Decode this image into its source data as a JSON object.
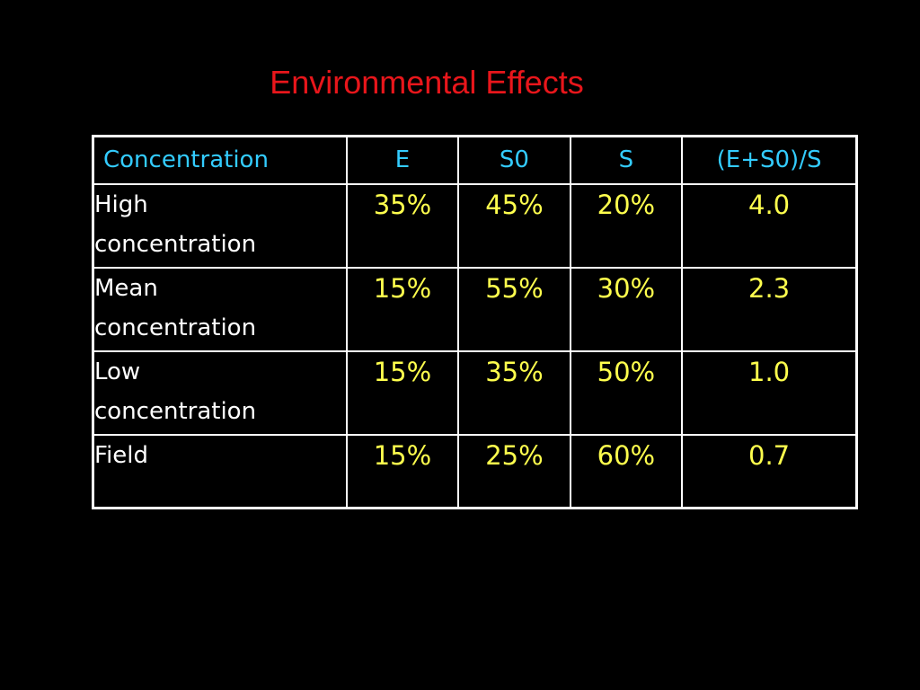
{
  "slide": {
    "title": "Environmental Effects"
  },
  "table": {
    "headers": [
      "Concentration",
      "E",
      "S0",
      "S",
      "(E+S0)/S"
    ],
    "rows": [
      {
        "label": "High\nconcentration",
        "values": [
          "35%",
          "45%",
          "20%",
          "4.0"
        ]
      },
      {
        "label": "Mean\nconcentration",
        "values": [
          "15%",
          "55%",
          "30%",
          "2.3"
        ]
      },
      {
        "label": "Low\nconcentration",
        "values": [
          "15%",
          "35%",
          "50%",
          "1.0"
        ]
      },
      {
        "label": "Field",
        "values": [
          "15%",
          "25%",
          "60%",
          "0.7"
        ]
      }
    ]
  },
  "colors": {
    "background": "#000000",
    "title": "#e8161b",
    "header_text": "#33ccff",
    "row_label_text": "#ffffff",
    "value_text": "#ffff4d",
    "grid_lines": "#ffffff"
  }
}
